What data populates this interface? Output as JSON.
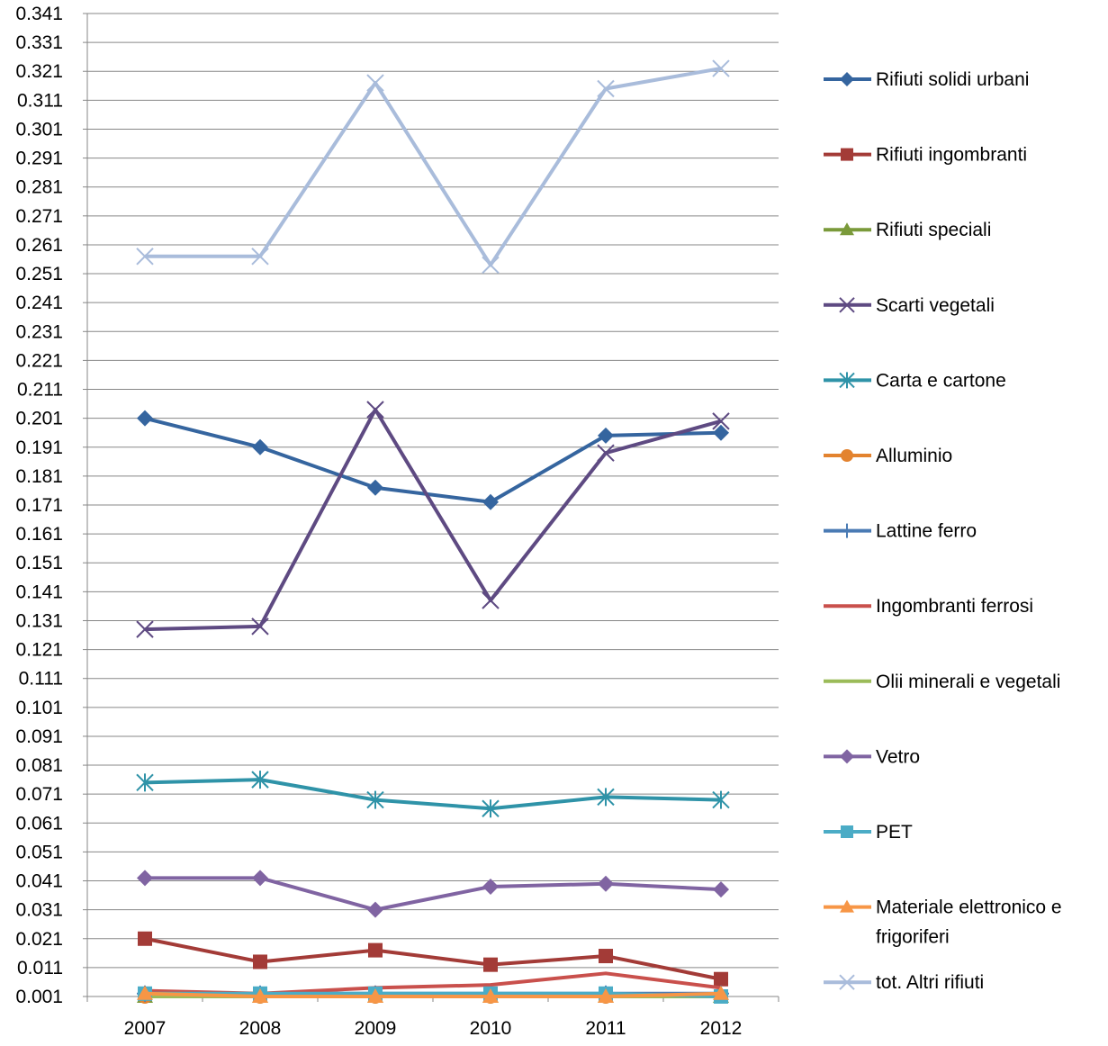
{
  "chart_data": {
    "type": "line",
    "title": "",
    "xlabel": "",
    "ylabel": "",
    "categories": [
      "2007",
      "2008",
      "2009",
      "2010",
      "2011",
      "2012"
    ],
    "ylim": [
      0.001,
      0.341
    ],
    "y_ticks": [
      "0.001",
      "0.011",
      "0.021",
      "0.031",
      "0.041",
      "0.051",
      "0.061",
      "0.071",
      "0.081",
      "0.091",
      "0.101",
      "0.111",
      "0.121",
      "0.131",
      "0.141",
      "0.151",
      "0.161",
      "0.171",
      "0.181",
      "0.191",
      "0.201",
      "0.211",
      "0.221",
      "0.231",
      "0.241",
      "0.251",
      "0.261",
      "0.271",
      "0.281",
      "0.291",
      "0.301",
      "0.311",
      "0.321",
      "0.331",
      "0.341"
    ],
    "grid": true,
    "legend_position": "right",
    "series": [
      {
        "name": "Rifiuti solidi urbani",
        "color": "#35659F",
        "marker": "diamond",
        "values": [
          0.201,
          0.191,
          0.177,
          0.172,
          0.195,
          0.196
        ]
      },
      {
        "name": "Rifiuti ingombranti",
        "color": "#A33B37",
        "marker": "square",
        "values": [
          0.021,
          0.013,
          0.017,
          0.012,
          0.015,
          0.007
        ]
      },
      {
        "name": "Rifiuti speciali",
        "color": "#7A9A3A",
        "marker": "triangle",
        "values": [
          0.001,
          0.001,
          0.001,
          0.001,
          0.001,
          0.001
        ]
      },
      {
        "name": "Scarti vegetali",
        "color": "#5E4A82",
        "marker": "x",
        "values": [
          0.128,
          0.129,
          0.204,
          0.138,
          0.189,
          0.2
        ]
      },
      {
        "name": "Carta e cartone",
        "color": "#2F93A8",
        "marker": "star",
        "values": [
          0.075,
          0.076,
          0.069,
          0.066,
          0.07,
          0.069
        ]
      },
      {
        "name": "Alluminio",
        "color": "#E3832F",
        "marker": "circle",
        "values": [
          0.001,
          0.001,
          0.001,
          0.001,
          0.001,
          0.001
        ]
      },
      {
        "name": "Lattine ferro",
        "color": "#4A7BB4",
        "marker": "plus",
        "values": [
          0.002,
          0.002,
          0.002,
          0.002,
          0.002,
          0.002
        ]
      },
      {
        "name": "Ingombranti ferrosi",
        "color": "#C9504C",
        "marker": "none",
        "values": [
          0.003,
          0.002,
          0.004,
          0.005,
          0.009,
          0.004
        ]
      },
      {
        "name": "Olii minerali  e vegetali",
        "color": "#9BBB59",
        "marker": "none",
        "values": [
          0.001,
          0.001,
          0.001,
          0.001,
          0.001,
          0.001
        ]
      },
      {
        "name": "Vetro",
        "color": "#8064A2",
        "marker": "diamond",
        "values": [
          0.042,
          0.042,
          0.031,
          0.039,
          0.04,
          0.038
        ]
      },
      {
        "name": "PET",
        "color": "#4BACC6",
        "marker": "square",
        "values": [
          0.002,
          0.002,
          0.002,
          0.002,
          0.002,
          0.001
        ]
      },
      {
        "name": "Materiale elettronico e frigoriferi",
        "legend_lines": [
          "Materiale elettronico e",
          "frigoriferi"
        ],
        "color": "#F79646",
        "marker": "triangle",
        "values": [
          0.002,
          0.001,
          0.001,
          0.001,
          0.001,
          0.002
        ]
      },
      {
        "name": "tot. Altri rifiuti",
        "color": "#A9BCDB",
        "marker": "x",
        "values": [
          0.257,
          0.257,
          0.317,
          0.254,
          0.315,
          0.322
        ]
      }
    ]
  }
}
